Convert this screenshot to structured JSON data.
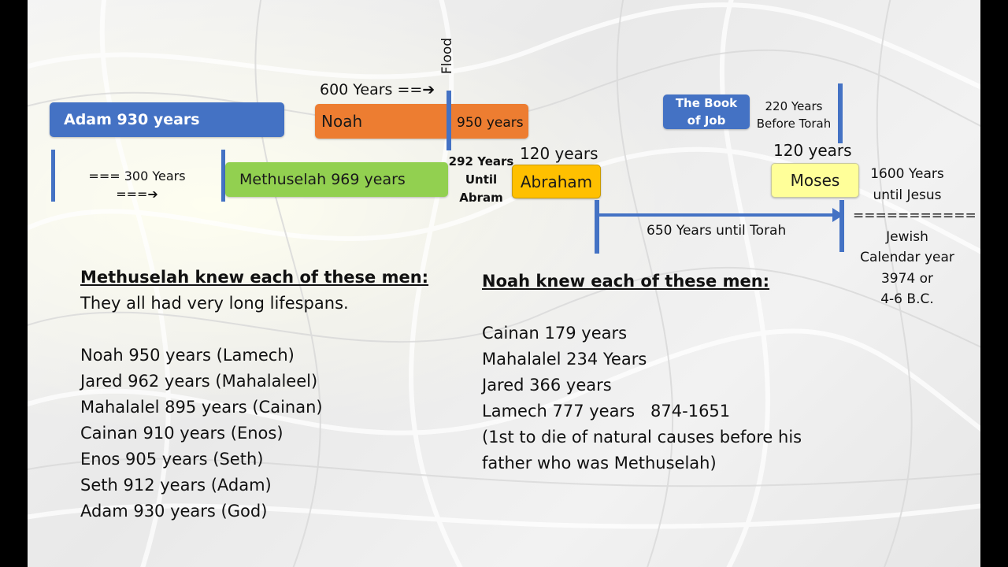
{
  "colors": {
    "blue": "#4472c4",
    "orange": "#ed7d31",
    "green": "#92d050",
    "gold": "#ffc000",
    "light_yellow": "#ffff99"
  },
  "timeline": {
    "adam_box": "Adam 930 years",
    "gap_300_line1": "=== 300 Years",
    "gap_300_line2": "===➔",
    "methuselah_box": "Methuselah 969 years",
    "noah_600": "600 Years ==➔",
    "flood_label": "Flood",
    "noah_box": "Noah",
    "noah_950": "950 years",
    "until_abram_line1": "292 Years",
    "until_abram_line2": "Until",
    "until_abram_line3": "Abram",
    "abraham_120": "120 years",
    "abraham_box": "Abraham",
    "book_of_job_line1": "The Book",
    "book_of_job_line2": "of Job",
    "before_torah_line1": "220 Years",
    "before_torah_line2": "Before Torah",
    "moses_120": "120 years",
    "moses_box": "Moses",
    "until_torah": "650 Years until Torah",
    "until_jesus_line1": "1600 Years",
    "until_jesus_line2": "until Jesus",
    "until_jesus_line3": "===========",
    "until_jesus_line4": "Jewish",
    "until_jesus_line5": "Calendar year",
    "until_jesus_line6": "3974 or",
    "until_jesus_line7": "4-6 B.C."
  },
  "methuselah_list": {
    "heading": "Methuselah knew each of these men:",
    "subtitle": "They all had very long lifespans.",
    "items": [
      "Noah 950 years (Lamech)",
      "Jared 962 years (Mahalaleel)",
      "Mahalalel 895 years (Cainan)",
      "Cainan 910 years (Enos)",
      "Enos 905 years (Seth)",
      "Seth 912 years (Adam)",
      "Adam 930 years (God)"
    ]
  },
  "noah_list": {
    "heading": "Noah knew each of these men:",
    "items": [
      "Cainan 179 years",
      "Mahalalel 234 Years",
      "Jared 366 years",
      "Lamech 777 years   874-1651",
      "(1st to die of natural causes before his",
      "father who was Methuselah)"
    ]
  }
}
